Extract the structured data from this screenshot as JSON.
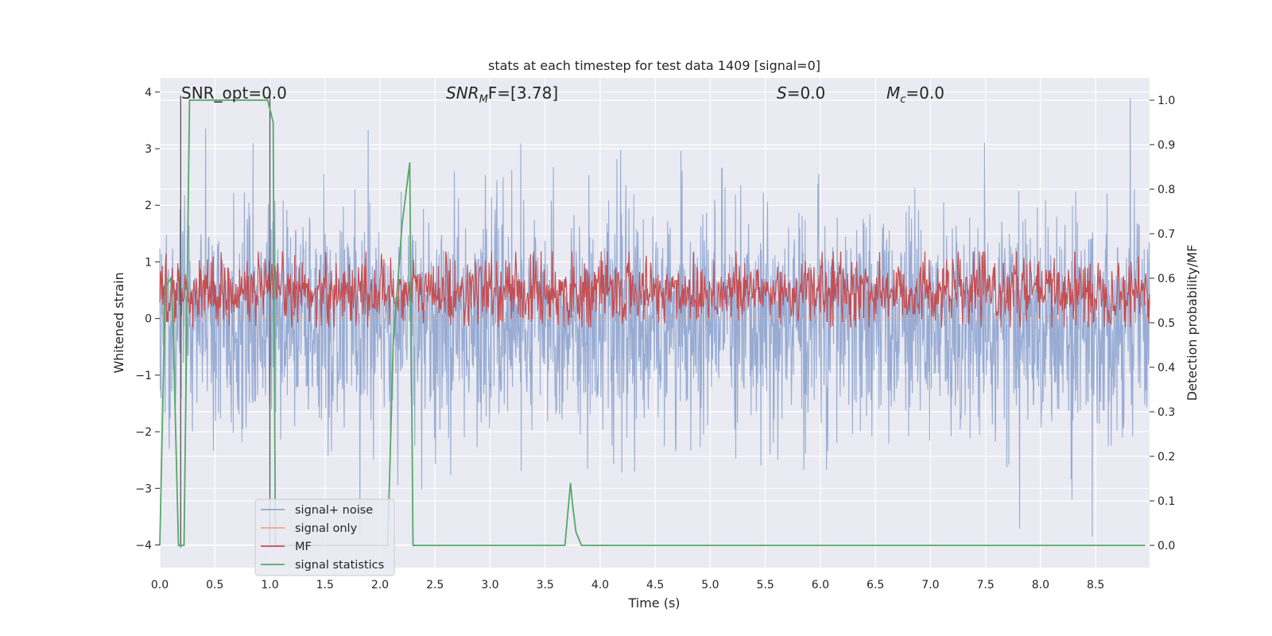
{
  "chart_data": {
    "type": "line",
    "title": "stats at each timestep for test data 1409 [signal=0]",
    "xlabel": "Time (s)",
    "ylabel_left": "Whitened strain",
    "ylabel_right": "Detection probability/MF",
    "xlim": [
      0.0,
      8.99
    ],
    "ylim_left": [
      -4.4,
      4.25
    ],
    "ylim_right": [
      -0.05,
      1.05
    ],
    "xticks": [
      "0.0",
      "0.5",
      "1.0",
      "1.5",
      "2.0",
      "2.5",
      "3.0",
      "3.5",
      "4.0",
      "4.5",
      "5.0",
      "5.5",
      "6.0",
      "6.5",
      "7.0",
      "7.5",
      "8.0",
      "8.5"
    ],
    "yticks_left": [
      "−4",
      "−3",
      "−2",
      "−1",
      "0",
      "1",
      "2",
      "3",
      "4"
    ],
    "yticks_right": [
      "0.0",
      "0.1",
      "0.2",
      "0.3",
      "0.4",
      "0.5",
      "0.6",
      "0.7",
      "0.8",
      "0.9",
      "1.0"
    ],
    "grid": true,
    "legend_position": "lower-left",
    "annotations": {
      "snr_opt": "SNR_opt=0.0",
      "snr_mf_symbol": "SNR",
      "snr_mf_sub": "M",
      "snr_mf_rest": "F=[3.78]",
      "s_symbol": "S",
      "s_rest": "=0.0",
      "mc_symbol": "M",
      "mc_sub": "c",
      "mc_rest": "=0.0"
    },
    "series": [
      {
        "name": "signal+ noise",
        "color": "#92a8d1",
        "axis": "left",
        "description_envelope": {
          "mean": -0.05,
          "typical_range": [
            -1.9,
            2.2
          ],
          "peak_max": 3.9,
          "peak_min": -3.85
        }
      },
      {
        "name": "signal only",
        "color": "#f0a582",
        "axis": "left",
        "values_constant": 0.0
      },
      {
        "name": "MF",
        "color": "#c44e52",
        "axis": "right",
        "typical_range": [
          0.5,
          0.64
        ]
      },
      {
        "name": "signal statistics",
        "color": "#55a868",
        "axis": "right",
        "x": [
          0.0,
          0.05,
          0.1,
          0.12,
          0.17,
          0.22,
          0.25,
          0.27,
          0.32,
          0.4,
          0.6,
          0.8,
          0.98,
          1.03,
          1.05,
          1.3,
          1.6,
          1.8,
          2.0,
          2.07,
          2.12,
          2.2,
          2.27,
          2.3,
          2.4,
          2.6,
          3.0,
          3.5,
          3.68,
          3.73,
          3.75,
          3.78,
          3.83,
          4.0,
          5.0,
          6.0,
          7.0,
          8.0,
          8.95
        ],
        "values": [
          0.0,
          0.58,
          0.6,
          0.5,
          0.0,
          0.0,
          0.6,
          1.0,
          1.0,
          1.0,
          1.0,
          1.0,
          1.0,
          0.95,
          0.0,
          0.0,
          0.0,
          0.0,
          0.0,
          0.0,
          0.45,
          0.72,
          0.86,
          0.0,
          0.0,
          0.0,
          0.0,
          0.0,
          0.0,
          0.14,
          0.09,
          0.03,
          0.0,
          0.0,
          0.0,
          0.0,
          0.0,
          0.0,
          0.0
        ]
      }
    ],
    "vertical_markers_x": [
      0.19,
      1.0
    ]
  },
  "legend": {
    "items": [
      {
        "label": "signal+ noise",
        "color": "#92a8d1"
      },
      {
        "label": "signal only",
        "color": "#f0a582"
      },
      {
        "label": "MF",
        "color": "#c44e52"
      },
      {
        "label": "signal statistics",
        "color": "#55a868"
      }
    ]
  }
}
